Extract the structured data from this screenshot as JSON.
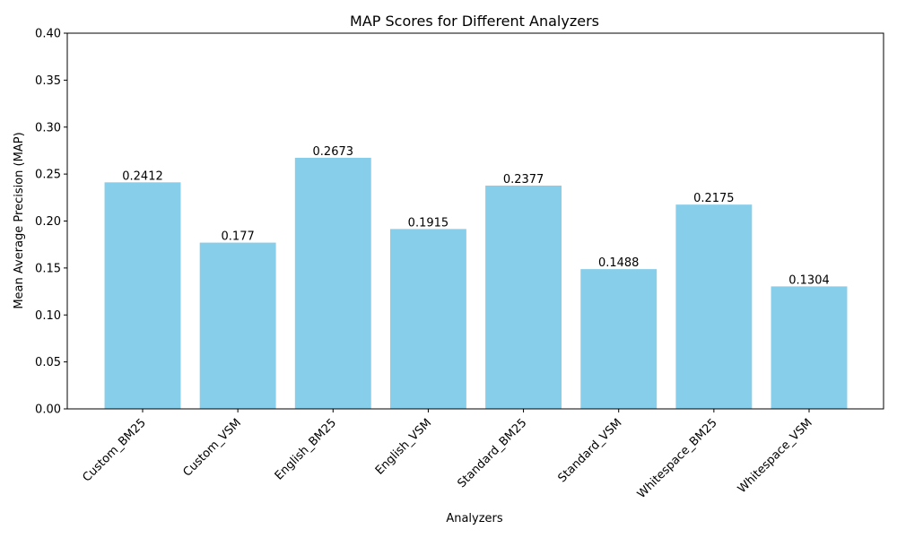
{
  "chart_data": {
    "type": "bar",
    "title": "MAP Scores for Different Analyzers",
    "xlabel": "Analyzers",
    "ylabel": "Mean Average Precision (MAP)",
    "categories": [
      "Custom_BM25",
      "Custom_VSM",
      "English_BM25",
      "English_VSM",
      "Standard_BM25",
      "Standard_VSM",
      "Whitespace_BM25",
      "Whitespace_VSM"
    ],
    "values": [
      0.2412,
      0.177,
      0.2673,
      0.1915,
      0.2377,
      0.1488,
      0.2175,
      0.1304
    ],
    "value_labels": [
      "0.2412",
      "0.177",
      "0.2673",
      "0.1915",
      "0.2377",
      "0.1488",
      "0.2175",
      "0.1304"
    ],
    "ylim": [
      0,
      0.4
    ],
    "yticks": [
      0.0,
      0.05,
      0.1,
      0.15,
      0.2,
      0.25,
      0.3,
      0.35,
      0.4
    ],
    "ytick_labels": [
      "0.00",
      "0.05",
      "0.10",
      "0.15",
      "0.20",
      "0.25",
      "0.30",
      "0.35",
      "0.40"
    ],
    "grid": false,
    "bar_color": "#87CEEB"
  }
}
